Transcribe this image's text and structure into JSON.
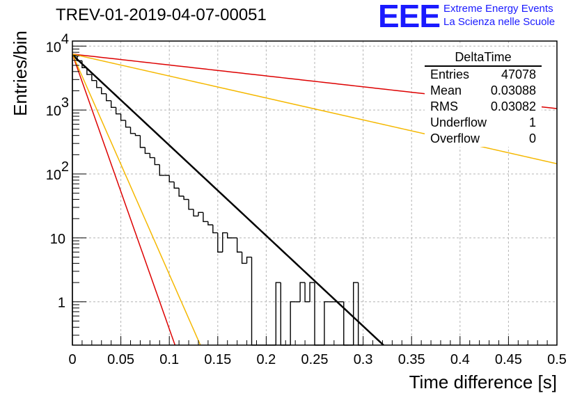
{
  "title": "TREV-01-2019-04-07-00051",
  "brand": {
    "logo": "EEE",
    "line1": "Extreme Energy Events",
    "line2": "La Scienza nelle Scuole"
  },
  "stats": {
    "name": "DeltaTime",
    "rows": [
      {
        "label": "Entries",
        "value": "47078"
      },
      {
        "label": "Mean",
        "value": "0.03088"
      },
      {
        "label": "RMS",
        "value": "0.03082"
      },
      {
        "label": "Underflow",
        "value": "1"
      },
      {
        "label": "Overflow",
        "value": "0"
      }
    ]
  },
  "chart_data": {
    "type": "histogram",
    "title": "TREV-01-2019-04-07-00051",
    "xlabel": "Time difference [s]",
    "ylabel": "Entries/bin",
    "xlim": [
      0,
      0.5
    ],
    "ylim": [
      0.21,
      12000
    ],
    "yscale": "log",
    "grid": true,
    "legend": "top-right",
    "x_ticks": [
      "0",
      "0.05",
      "0.1",
      "0.15",
      "0.2",
      "0.25",
      "0.3",
      "0.35",
      "0.4",
      "0.45",
      "0.5"
    ],
    "x_tick_values": [
      0,
      0.05,
      0.1,
      0.15,
      0.2,
      0.25,
      0.3,
      0.35,
      0.4,
      0.45,
      0.5
    ],
    "y_ticks": [
      {
        "value": 1,
        "base": "1",
        "exp": ""
      },
      {
        "value": 10,
        "base": "10",
        "exp": ""
      },
      {
        "value": 100,
        "base": "10",
        "exp": "2"
      },
      {
        "value": 1000,
        "base": "10",
        "exp": "3"
      },
      {
        "value": 10000,
        "base": "10",
        "exp": "4"
      }
    ],
    "bin_width": 0.005,
    "bin_start": 0,
    "histogram_counts": [
      7200,
      5900,
      4600,
      3600,
      2900,
      2250,
      1800,
      1400,
      1100,
      870,
      690,
      540,
      430,
      400,
      260,
      210,
      180,
      140,
      95,
      95,
      75,
      60,
      45,
      40,
      28,
      22,
      25,
      18,
      16,
      12,
      6,
      12,
      10,
      10,
      6,
      4,
      5,
      0,
      0,
      0,
      0,
      0,
      2,
      0,
      0,
      1,
      1,
      2,
      1,
      2,
      0,
      0,
      1,
      1,
      1,
      1,
      0,
      0,
      2,
      0
    ],
    "fits": [
      {
        "color": "#000000",
        "A": 7300,
        "tau": 0.0307,
        "width": 2.5
      },
      {
        "color": "#dd0000",
        "A": 7500,
        "tau": 0.2547,
        "width": 1.5
      },
      {
        "color": "#f5b800",
        "A": 7500,
        "tau": 0.1266,
        "width": 1.5
      },
      {
        "color": "#dd0000",
        "A": 7500,
        "tau": 0.0101,
        "width": 1.5
      },
      {
        "color": "#f5b800",
        "A": 7500,
        "tau": 0.0126,
        "width": 1.5
      }
    ]
  }
}
